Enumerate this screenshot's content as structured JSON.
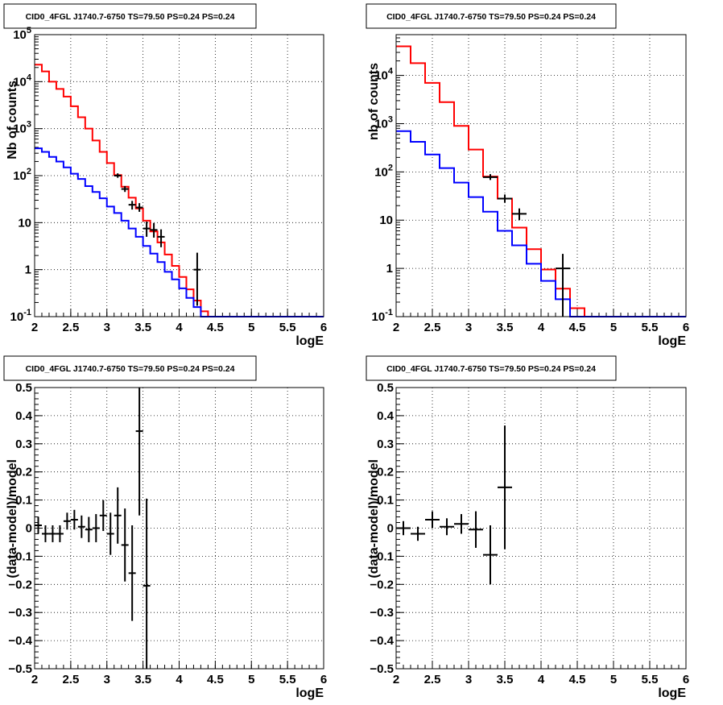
{
  "colors": {
    "data": "#000000",
    "model_total": "#ff0000",
    "model_source": "#0000ff",
    "grid": "#000000"
  },
  "chart_data": [
    {
      "type": "line",
      "title": "CID0_4FGL J1740.7-6750 TS=79.50 PS=0.24 PS=0.24",
      "xlabel": "logE",
      "ylabel": "Nb of counts",
      "ylog": true,
      "xlim": [
        2,
        6
      ],
      "ylim": [
        0.1,
        100000
      ],
      "xticks": [
        "2",
        "2.5",
        "3",
        "3.5",
        "4",
        "4.5",
        "5",
        "5.5",
        "6"
      ],
      "yticks": [
        "10^-1",
        "1",
        "10",
        "10^2",
        "10^3",
        "10^4",
        "10^5"
      ],
      "grid": true,
      "bin_edges": [
        2.0,
        2.1,
        2.2,
        2.3,
        2.4,
        2.5,
        2.6,
        2.7,
        2.8,
        2.9,
        3.0,
        3.1,
        3.2,
        3.3,
        3.4,
        3.5,
        3.6,
        3.7,
        3.8,
        3.9,
        4.0,
        4.1,
        4.2,
        4.3,
        4.4,
        4.5,
        6.0
      ],
      "series": [
        {
          "role": "model_total",
          "values": [
            23000,
            16500,
            10000,
            7000,
            4800,
            3000,
            1750,
            1000,
            560,
            320,
            185,
            103,
            58,
            34,
            20,
            11,
            6.5,
            3.8,
            2.1,
            1.2,
            0.7,
            0.38,
            0.22,
            0.13,
            0.1,
            0.1
          ]
        },
        {
          "role": "model_source",
          "values": [
            380,
            320,
            250,
            200,
            150,
            110,
            85,
            60,
            45,
            33,
            22,
            16,
            11,
            7.5,
            5.0,
            3.2,
            2.2,
            1.45,
            0.9,
            0.62,
            0.4,
            0.25,
            0.16,
            0.1,
            0.1,
            0.1
          ]
        },
        {
          "role": "data",
          "points": [
            {
              "x": 3.15,
              "y": 100,
              "lo": 90,
              "hi": 112
            },
            {
              "x": 3.25,
              "y": 52,
              "lo": 45,
              "hi": 60
            },
            {
              "x": 3.35,
              "y": 24,
              "lo": 19,
              "hi": 29
            },
            {
              "x": 3.45,
              "y": 21,
              "lo": 17,
              "hi": 26
            },
            {
              "x": 3.55,
              "y": 7.5,
              "lo": 5.0,
              "hi": 10.5
            },
            {
              "x": 3.65,
              "y": 7.0,
              "lo": 4.8,
              "hi": 9.8
            },
            {
              "x": 3.75,
              "y": 5.0,
              "lo": 3.0,
              "hi": 7.2
            },
            {
              "x": 4.25,
              "y": 1.0,
              "lo": 0.17,
              "hi": 2.3
            }
          ]
        }
      ]
    },
    {
      "type": "line",
      "title": "CID0_4FGL J1740.7-6750 TS=79.50 PS=0.24 PS=0.24",
      "xlabel": "logE",
      "ylabel": "nb of counts",
      "ylog": true,
      "xlim": [
        2,
        6
      ],
      "ylim": [
        0.1,
        70000
      ],
      "xticks": [
        "2",
        "2.5",
        "3",
        "3.5",
        "4",
        "4.5",
        "5",
        "5.5",
        "6"
      ],
      "yticks": [
        "10^-1",
        "1",
        "10",
        "10^2",
        "10^3",
        "10^4"
      ],
      "grid": true,
      "bin_edges": [
        2.0,
        2.2,
        2.4,
        2.6,
        2.8,
        3.0,
        3.2,
        3.4,
        3.6,
        3.8,
        4.0,
        4.2,
        4.4,
        4.6,
        6.0
      ],
      "series": [
        {
          "role": "model_total",
          "values": [
            40000,
            18000,
            7000,
            2800,
            900,
            290,
            80,
            28,
            7.0,
            2.5,
            0.95,
            0.38,
            0.15,
            0.1
          ]
        },
        {
          "role": "model_source",
          "values": [
            700,
            420,
            230,
            120,
            60,
            30,
            15,
            6.0,
            3.0,
            1.25,
            0.55,
            0.23,
            0.1,
            0.1
          ]
        },
        {
          "role": "data",
          "points": [
            {
              "x": 3.3,
              "y": 78,
              "lo": 68,
              "hi": 90
            },
            {
              "x": 3.5,
              "y": 28,
              "lo": 23,
              "hi": 34
            },
            {
              "x": 3.7,
              "y": 13.5,
              "lo": 10,
              "hi": 17.5
            },
            {
              "x": 4.3,
              "y": 1.0,
              "lo": 0.1,
              "hi": 2.0
            }
          ]
        }
      ]
    },
    {
      "type": "scatter",
      "title": "CID0_4FGL J1740.7-6750 TS=79.50 PS=0.24 PS=0.24",
      "xlabel": "logE",
      "ylabel": "(data-model)/model",
      "ylog": false,
      "xlim": [
        2,
        6
      ],
      "ylim": [
        -0.5,
        0.5
      ],
      "xticks": [
        "2",
        "2.5",
        "3",
        "3.5",
        "4",
        "4.5",
        "5",
        "5.5",
        "6"
      ],
      "yticks": [
        "-0.5",
        "-0.4",
        "-0.3",
        "-0.2",
        "-0.1",
        "0",
        "0.1",
        "0.2",
        "0.3",
        "0.4",
        "0.5"
      ],
      "grid": true,
      "xerr": 0.05,
      "series": [
        {
          "role": "data",
          "points": [
            {
              "x": 2.05,
              "y": 0.01,
              "err": 0.03
            },
            {
              "x": 2.15,
              "y": -0.02,
              "err": 0.03
            },
            {
              "x": 2.25,
              "y": -0.02,
              "err": 0.03
            },
            {
              "x": 2.35,
              "y": -0.02,
              "err": 0.03
            },
            {
              "x": 2.45,
              "y": 0.025,
              "err": 0.03
            },
            {
              "x": 2.55,
              "y": 0.03,
              "err": 0.035
            },
            {
              "x": 2.65,
              "y": 0.005,
              "err": 0.04
            },
            {
              "x": 2.75,
              "y": -0.005,
              "err": 0.045
            },
            {
              "x": 2.85,
              "y": 0.0,
              "err": 0.05
            },
            {
              "x": 2.95,
              "y": 0.045,
              "err": 0.055
            },
            {
              "x": 3.05,
              "y": -0.02,
              "err": 0.075
            },
            {
              "x": 3.15,
              "y": 0.045,
              "err": 0.1
            },
            {
              "x": 3.25,
              "y": -0.06,
              "err": 0.13
            },
            {
              "x": 3.35,
              "y": -0.16,
              "err": 0.17
            },
            {
              "x": 3.45,
              "y": 0.345,
              "err": 0.3
            },
            {
              "x": 3.55,
              "y": -0.205,
              "err": 0.31
            }
          ]
        }
      ]
    },
    {
      "type": "scatter",
      "title": "CID0_4FGL J1740.7-6750 TS=79.50 PS=0.24 PS=0.24",
      "xlabel": "logE",
      "ylabel": "(data-model)/model",
      "ylog": false,
      "xlim": [
        2,
        6
      ],
      "ylim": [
        -0.5,
        0.5
      ],
      "xticks": [
        "2",
        "2.5",
        "3",
        "3.5",
        "4",
        "4.5",
        "5",
        "5.5",
        "6"
      ],
      "yticks": [
        "-0.5",
        "-0.4",
        "-0.3",
        "-0.2",
        "-0.1",
        "0",
        "0.1",
        "0.2",
        "0.3",
        "0.4",
        "0.5"
      ],
      "grid": true,
      "xerr": 0.1,
      "series": [
        {
          "role": "data",
          "points": [
            {
              "x": 2.1,
              "y": 0.0,
              "err": 0.025
            },
            {
              "x": 2.3,
              "y": -0.02,
              "err": 0.025
            },
            {
              "x": 2.5,
              "y": 0.03,
              "err": 0.03
            },
            {
              "x": 2.7,
              "y": 0.005,
              "err": 0.03
            },
            {
              "x": 2.9,
              "y": 0.015,
              "err": 0.035
            },
            {
              "x": 3.1,
              "y": -0.005,
              "err": 0.065
            },
            {
              "x": 3.3,
              "y": -0.095,
              "err": 0.105
            },
            {
              "x": 3.5,
              "y": 0.145,
              "err": 0.22
            }
          ]
        }
      ]
    }
  ]
}
